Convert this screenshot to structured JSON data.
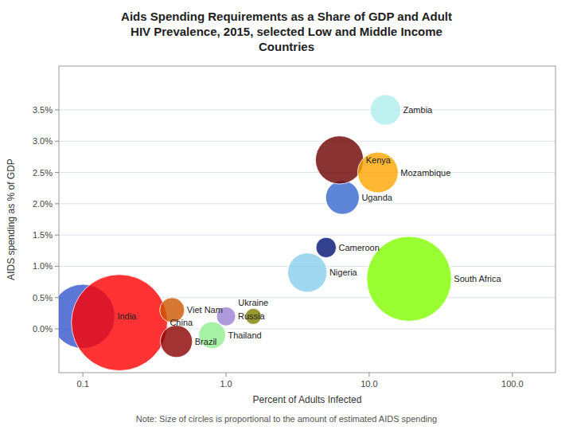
{
  "chart_data": {
    "type": "scatter",
    "title": "Aids Spending Requirements as a Share of GDP and Adult\nHIV Prevalence, 2015, selected Low and Middle Income\nCountries",
    "x_label": "Percent of Adults Infected",
    "y_label": "AIDS spending as % of GDP",
    "note": "Note: Size of circles is proportional  to the amount of estimated  AIDS spending",
    "labels": [
      "India",
      "China",
      "Brazil",
      "Viet Nam",
      "Thailand",
      "Russia",
      "Ukraine",
      "Uganda",
      "Kenya",
      "Mozambique",
      "Cameroon",
      "Nigeria",
      "Zambia",
      "South Africa"
    ],
    "x": [
      0.1,
      0.18,
      0.45,
      0.42,
      0.8,
      1.0,
      1.55,
      6.5,
      6.2,
      11.5,
      5.0,
      3.7,
      13.0,
      19.0
    ],
    "values": [
      0.002,
      0.001,
      -0.002,
      0.003,
      -0.001,
      0.002,
      0.002,
      0.021,
      0.027,
      0.025,
      0.013,
      0.009,
      0.035,
      0.008
    ],
    "sizes": [
      8000,
      18000,
      2000,
      1200,
      1400,
      700,
      500,
      2200,
      4500,
      3200,
      800,
      3000,
      1800,
      14000
    ],
    "colors": [
      "#3355CC",
      "#FF0000",
      "#8B0000",
      "#CC5500",
      "#90EE90",
      "#9B7FD4",
      "#808000",
      "#3366CC",
      "#6B0000",
      "#FFA500",
      "#001070",
      "#87CEEB",
      "#AFEEEE",
      "#7FFF00"
    ],
    "log": "x",
    "grid": true,
    "xlim": [
      0.068,
      200
    ],
    "ylim": [
      -0.007,
      0.042
    ],
    "xticks": [
      0.1,
      {
        "value": 1.0,
        "label": "1.0"
      },
      {
        "value": 10.0,
        "label": "10.0"
      },
      {
        "value": 100.0,
        "label": "100.0"
      }
    ],
    "yticks": [
      {
        "value": 0.0,
        "label": "0.0%"
      },
      {
        "value": 0.005,
        "label": "0.5%"
      },
      {
        "value": 0.01,
        "label": "1.0%"
      },
      {
        "value": 0.015,
        "label": "1.5%"
      },
      {
        "value": 0.02,
        "label": "2.0%"
      },
      {
        "value": 0.025,
        "label": "2.5%"
      },
      {
        "value": 0.03,
        "label": "3.0%"
      },
      {
        "value": 0.035,
        "label": "3.5%"
      }
    ]
  }
}
